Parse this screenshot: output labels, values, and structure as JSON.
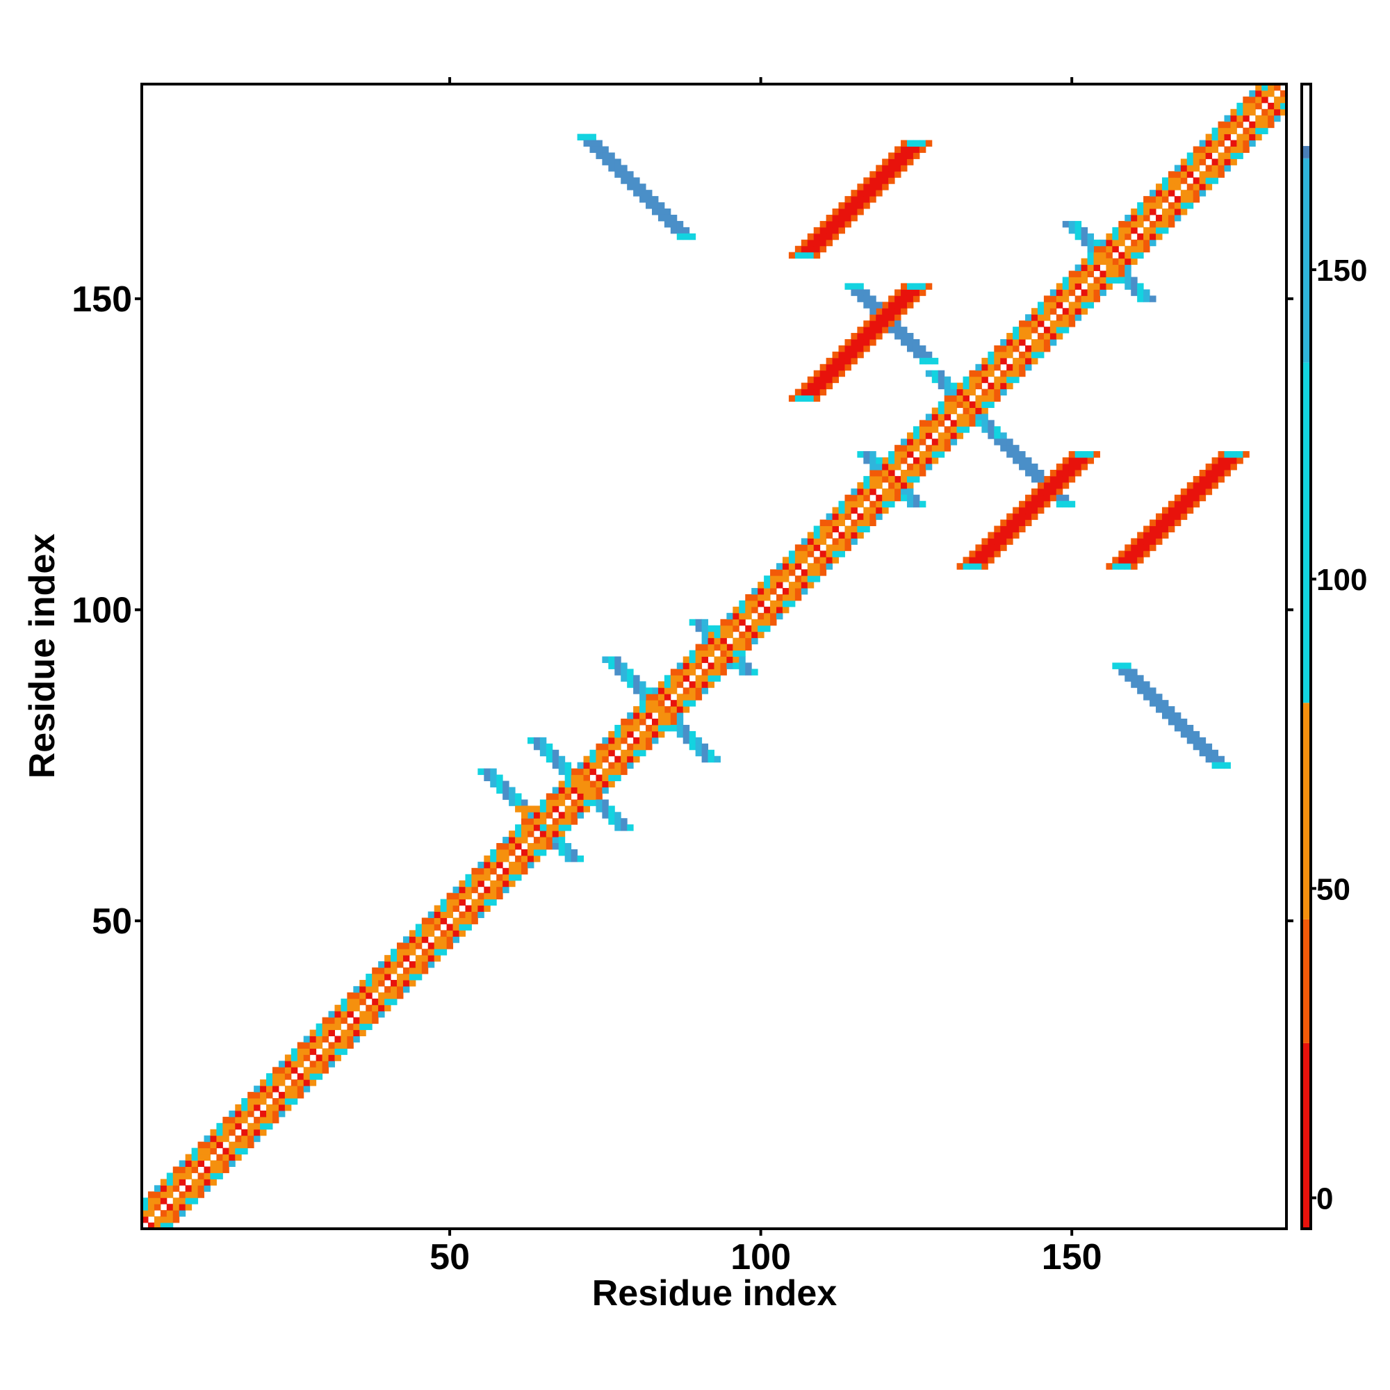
{
  "chart_data": {
    "type": "heatmap",
    "title": "",
    "xlabel": "Residue index",
    "ylabel": "Residue index",
    "xlim": [
      1,
      184
    ],
    "ylim": [
      1,
      184
    ],
    "xticks": [
      50,
      100,
      150
    ],
    "yticks": [
      50,
      100,
      150
    ],
    "colorbar": {
      "ticks": [
        0,
        50,
        100,
        150
      ],
      "range": [
        -5,
        180
      ],
      "segments": [
        {
          "from": -5,
          "to": 25,
          "color": "#e8120c"
        },
        {
          "from": 25,
          "to": 45,
          "color": "#f25a08"
        },
        {
          "from": 45,
          "to": 80,
          "color": "#f5900e"
        },
        {
          "from": 80,
          "to": 135,
          "color": "#13d3e0"
        },
        {
          "from": 135,
          "to": 168,
          "color": "#2fb5dc"
        },
        {
          "from": 168,
          "to": 170,
          "color": "#4a7fb8"
        },
        {
          "from": 170,
          "to": 180,
          "color": "#ffffff"
        }
      ]
    },
    "colors": {
      "red": "#e8120c",
      "orange_red": "#f25a08",
      "orange": "#f5900e",
      "cyan": "#13d3e0",
      "light_blue": "#2fb5dc",
      "steel_blue": "#4a8fc8"
    },
    "grid": false,
    "cell_classes": [
      "red",
      "orange_red",
      "orange",
      "cyan",
      "light_blue",
      "steel_blue"
    ],
    "contact_regions": [
      {
        "kind": "helix_diagonal",
        "from": 1,
        "to": 184
      },
      {
        "kind": "beta_cross",
        "center": [
          63,
          67
        ],
        "size": 7
      },
      {
        "kind": "beta_cross",
        "center": [
          71,
          72
        ],
        "size": 7
      },
      {
        "kind": "beta_cross",
        "center": [
          84,
          84
        ],
        "size": 8
      },
      {
        "kind": "beta_cross",
        "center": [
          94,
          94
        ],
        "size": 4
      },
      {
        "kind": "beta_cross",
        "center": [
          121,
          121
        ],
        "size": 4
      },
      {
        "kind": "beta_cross",
        "center": [
          133,
          133
        ],
        "size": 5
      },
      {
        "kind": "beta_cross",
        "center": [
          156,
          156
        ],
        "size": 6
      },
      {
        "kind": "antiparallel_block",
        "center": [
          80,
          168
        ],
        "length": 8,
        "class": "steel_blue"
      },
      {
        "kind": "antiparallel_block",
        "center": [
          166,
          83
        ],
        "length": 8,
        "class": "steel_blue"
      },
      {
        "kind": "parallel_block",
        "center": [
          116,
          166
        ],
        "length": 9,
        "class": "red"
      },
      {
        "kind": "parallel_block",
        "center": [
          167,
          116
        ],
        "length": 9,
        "class": "red"
      },
      {
        "kind": "parallel_block",
        "center": [
          116,
          143
        ],
        "length": 9,
        "class": "red"
      },
      {
        "kind": "parallel_block",
        "center": [
          143,
          116
        ],
        "length": 9,
        "class": "red"
      },
      {
        "kind": "antiparallel_block",
        "center": [
          121,
          146
        ],
        "length": 6,
        "class": "steel_blue"
      },
      {
        "kind": "antiparallel_block",
        "center": [
          143,
          123
        ],
        "length": 6,
        "class": "steel_blue"
      }
    ]
  }
}
